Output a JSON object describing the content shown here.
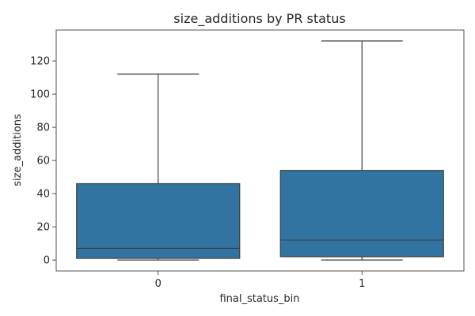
{
  "chart_data": {
    "type": "box",
    "title": "size_additions by PR status",
    "xlabel": "final_status_bin",
    "ylabel": "size_additions",
    "categories": [
      "0",
      "1"
    ],
    "boxes": [
      {
        "category": "0",
        "whisker_low": 0,
        "q1": 1,
        "median": 7,
        "q3": 46,
        "whisker_high": 112
      },
      {
        "category": "1",
        "whisker_low": 0,
        "q1": 2,
        "median": 12,
        "q3": 54,
        "whisker_high": 132
      }
    ],
    "ylim": [
      -6.6,
      138.6
    ],
    "yticks": [
      0,
      20,
      40,
      60,
      80,
      100,
      120
    ],
    "grid": false,
    "box_color": "#3274a1",
    "line_color": "#3f3f3f"
  }
}
